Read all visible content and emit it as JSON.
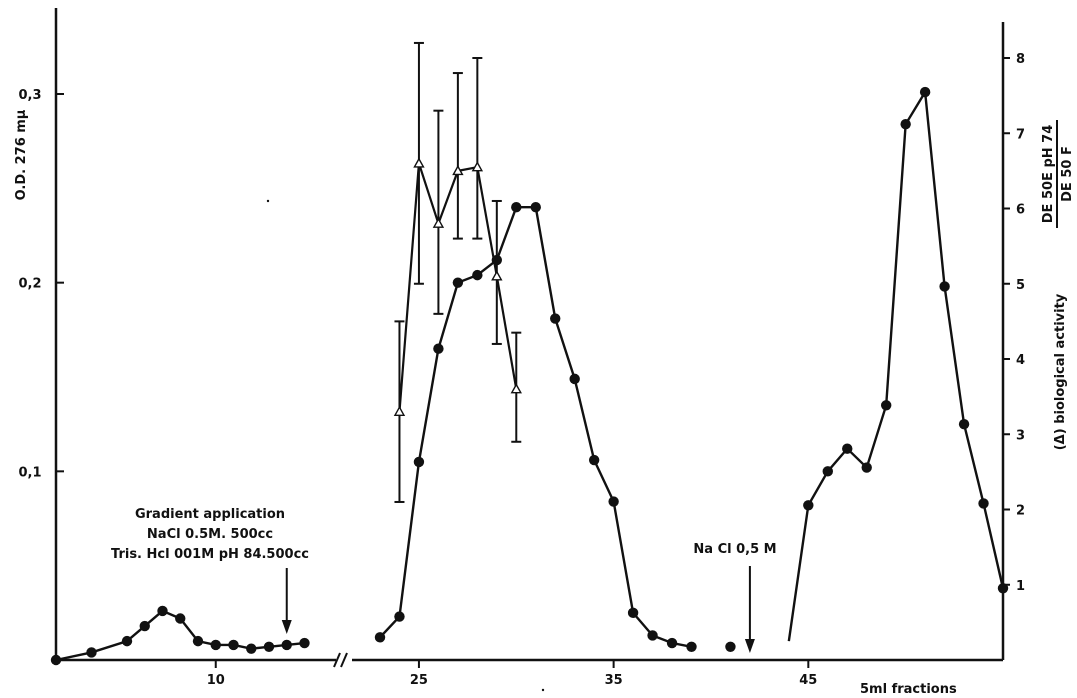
{
  "chart_data": {
    "type": "line",
    "x_axis": {
      "label": "5ml  fractions",
      "ticks": [
        10,
        25,
        35,
        45
      ],
      "break_between": [
        17,
        23
      ]
    },
    "y_axis_left": {
      "label": "O.D. 276 mμ",
      "ticks": [
        "0,1",
        "0,2",
        "0,3"
      ],
      "tick_values": [
        0.1,
        0.2,
        0.3
      ],
      "range": [
        0,
        0.35
      ]
    },
    "y_axis_right": {
      "label_main": "(Δ) biological  activity",
      "fraction_numerator": "DE 50E pH 74",
      "fraction_denominator": "DE 50 F",
      "ticks": [
        "1",
        "2",
        "3",
        "4",
        "5",
        "6",
        "7",
        "8"
      ],
      "tick_values": [
        1,
        2,
        3,
        4,
        5,
        6,
        7,
        8
      ],
      "range": [
        0,
        8.5
      ]
    },
    "series": [
      {
        "marker": "filled-circle",
        "axis": "left",
        "segments": [
          [
            [
              1,
              0.0
            ],
            [
              3,
              0.004
            ],
            [
              5,
              0.01
            ],
            [
              6,
              0.018
            ],
            [
              7,
              0.026
            ],
            [
              8,
              0.022
            ],
            [
              9,
              0.01
            ],
            [
              10,
              0.008
            ],
            [
              11,
              0.008
            ],
            [
              12,
              0.006
            ],
            [
              13,
              0.007
            ],
            [
              14,
              0.008
            ],
            [
              15,
              0.009
            ]
          ],
          [
            [
              23,
              0.012
            ],
            [
              24,
              0.023
            ],
            [
              25,
              0.105
            ],
            [
              26,
              0.165
            ],
            [
              27,
              0.2
            ],
            [
              28,
              0.204
            ],
            [
              29,
              0.212
            ],
            [
              30,
              0.24
            ],
            [
              31,
              0.24
            ],
            [
              32,
              0.181
            ],
            [
              33,
              0.149
            ],
            [
              34,
              0.106
            ],
            [
              35,
              0.084
            ],
            [
              36,
              0.025
            ],
            [
              37,
              0.013
            ],
            [
              38,
              0.009
            ],
            [
              39,
              0.007
            ]
          ],
          [
            [
              41,
              0.007
            ]
          ],
          [
            [
              44,
              0.01
            ],
            [
              45,
              0.082
            ],
            [
              46,
              0.1
            ],
            [
              47,
              0.112
            ],
            [
              48,
              0.102
            ],
            [
              49,
              0.135
            ],
            [
              50,
              0.284
            ],
            [
              51,
              0.301
            ],
            [
              52,
              0.198
            ],
            [
              53,
              0.125
            ],
            [
              54,
              0.083
            ],
            [
              55,
              0.038
            ]
          ]
        ],
        "marked": [
          [
            1,
            0.0
          ],
          [
            3,
            0.004
          ],
          [
            5,
            0.01
          ],
          [
            6,
            0.018
          ],
          [
            7,
            0.026
          ],
          [
            8,
            0.022
          ],
          [
            9,
            0.01
          ],
          [
            10,
            0.008
          ],
          [
            11,
            0.008
          ],
          [
            12,
            0.006
          ],
          [
            13,
            0.007
          ],
          [
            14,
            0.008
          ],
          [
            15,
            0.009
          ],
          [
            23,
            0.012
          ],
          [
            24,
            0.023
          ],
          [
            25,
            0.105
          ],
          [
            26,
            0.165
          ],
          [
            27,
            0.2
          ],
          [
            28,
            0.204
          ],
          [
            29,
            0.212
          ],
          [
            30,
            0.24
          ],
          [
            31,
            0.24
          ],
          [
            32,
            0.181
          ],
          [
            33,
            0.149
          ],
          [
            34,
            0.106
          ],
          [
            35,
            0.084
          ],
          [
            36,
            0.025
          ],
          [
            37,
            0.013
          ],
          [
            38,
            0.009
          ],
          [
            39,
            0.007
          ],
          [
            41,
            0.007
          ],
          [
            45,
            0.082
          ],
          [
            46,
            0.1
          ],
          [
            47,
            0.112
          ],
          [
            48,
            0.102
          ],
          [
            49,
            0.135
          ],
          [
            50,
            0.284
          ],
          [
            51,
            0.301
          ],
          [
            52,
            0.198
          ],
          [
            53,
            0.125
          ],
          [
            54,
            0.083
          ],
          [
            55,
            0.038
          ]
        ]
      },
      {
        "marker": "open-triangle",
        "axis": "right",
        "points": [
          {
            "x": 24,
            "y": 3.3,
            "err_low": 2.1,
            "err_high": 4.5
          },
          {
            "x": 25,
            "y": 6.6,
            "err_low": 5.0,
            "err_high": 8.2
          },
          {
            "x": 26,
            "y": 5.8,
            "err_low": 4.6,
            "err_high": 7.3
          },
          {
            "x": 27,
            "y": 6.5,
            "err_low": 5.6,
            "err_high": 7.8
          },
          {
            "x": 28,
            "y": 6.55,
            "err_low": 5.6,
            "err_high": 8.0
          },
          {
            "x": 29,
            "y": 5.1,
            "err_low": 4.2,
            "err_high": 6.1
          },
          {
            "x": 30,
            "y": 3.6,
            "err_low": 2.9,
            "err_high": 4.35
          }
        ]
      }
    ],
    "annotations": [
      {
        "lines": [
          "Gradient application",
          "NaCl 0.5M. 500cc",
          "Tris. Hcl 001M pH 84.500cc"
        ],
        "arrow_x": 14,
        "arrow_to_y": 0.01
      },
      {
        "lines": [
          "Na Cl 0,5 M"
        ],
        "arrow_x": 42,
        "arrow_to_y": 0.007
      }
    ]
  }
}
